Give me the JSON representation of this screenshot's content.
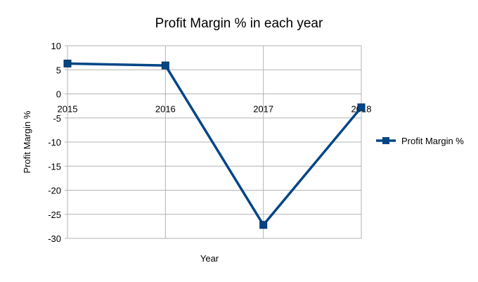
{
  "chart_data": {
    "type": "line",
    "title": "Profit Margin % in each year",
    "xlabel": "Year",
    "ylabel": "Profit Margin %",
    "categories": [
      "2015",
      "2016",
      "2017",
      "2018"
    ],
    "series": [
      {
        "name": "Profit Margin %",
        "values": [
          6.3,
          5.9,
          -27.2,
          -2.8
        ],
        "color": "#004586"
      }
    ],
    "ylim": [
      -30,
      10
    ],
    "yticks": [
      10,
      5,
      0,
      -5,
      -10,
      -15,
      -20,
      -25,
      -30
    ],
    "grid": true,
    "legend_position": "right",
    "marker": "square"
  }
}
